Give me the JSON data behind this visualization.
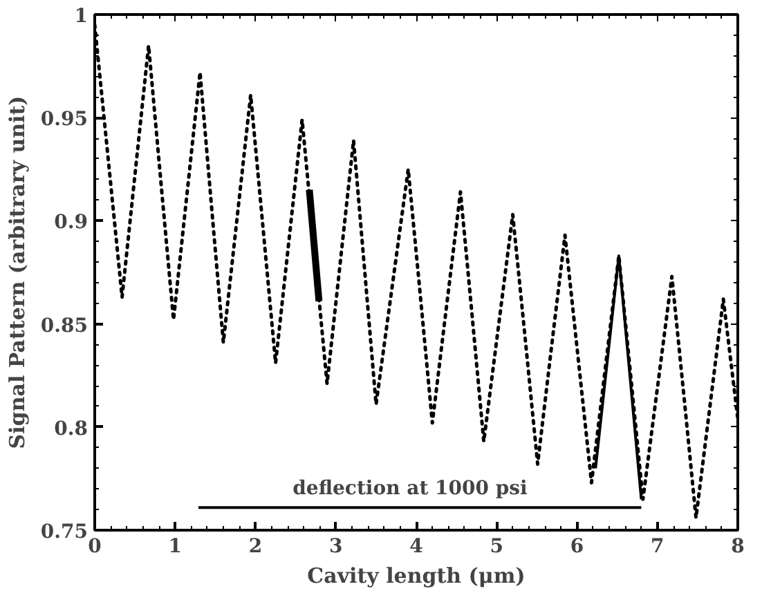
{
  "chart_data": {
    "type": "line",
    "xlabel": "Cavity length (μm)",
    "ylabel": "Signal Pattern (arbitrary unit)",
    "xlim": [
      0,
      8
    ],
    "ylim": [
      0.75,
      1
    ],
    "xticks": [
      0,
      1,
      2,
      3,
      4,
      5,
      6,
      7,
      8
    ],
    "yticks": [
      {
        "value": 0.75,
        "label": "0.75"
      },
      {
        "value": 0.8,
        "label": "0.8"
      },
      {
        "value": 0.85,
        "label": "0.85"
      },
      {
        "value": 0.9,
        "label": "0.9"
      },
      {
        "value": 0.95,
        "label": "0.95"
      },
      {
        "value": 1,
        "label": "1"
      }
    ],
    "grid": false,
    "series": [
      {
        "color": "#000000",
        "line_style": "dotted",
        "x": [
          0,
          0.17,
          0.34,
          0.505,
          0.67,
          0.825,
          0.98,
          1.145,
          1.31,
          1.455,
          1.6,
          1.77,
          1.94,
          2.095,
          2.25,
          2.415,
          2.58,
          2.735,
          2.89,
          3.055,
          3.22,
          3.36,
          3.5,
          3.7,
          3.9,
          4.05,
          4.2,
          4.375,
          4.55,
          4.695,
          4.84,
          5.02,
          5.2,
          5.355,
          5.51,
          5.68,
          5.85,
          6.015,
          6.18,
          6.35,
          6.52,
          6.67,
          6.82,
          7.0,
          7.18,
          7.33,
          7.48,
          7.65,
          7.82,
          7.91,
          8
        ],
        "values": [
          0.995,
          0.929,
          0.863,
          0.924,
          0.985,
          0.918,
          0.852,
          0.912,
          0.972,
          0.906,
          0.841,
          0.901,
          0.961,
          0.896,
          0.831,
          0.89,
          0.949,
          0.885,
          0.821,
          0.88,
          0.939,
          0.875,
          0.811,
          0.868,
          0.925,
          0.864,
          0.802,
          0.858,
          0.914,
          0.854,
          0.793,
          0.848,
          0.903,
          0.843,
          0.782,
          0.838,
          0.893,
          0.833,
          0.773,
          0.828,
          0.883,
          0.824,
          0.765,
          0.819,
          0.873,
          0.815,
          0.756,
          0.809,
          0.862,
          0.833,
          0.804
        ]
      },
      {
        "color": "#000000",
        "line_style": "solid",
        "x": [
          2.67,
          2.79
        ],
        "values": [
          0.915,
          0.861
        ]
      },
      {
        "color": "#000000",
        "line_style": "solid",
        "x": [
          6.23,
          6.52,
          6.8
        ],
        "values": [
          0.78,
          0.883,
          0.765
        ]
      },
      {
        "color": "#000000",
        "line_style": "solid",
        "x": [
          6.8,
          1.29
        ],
        "values": [
          0.761,
          0.761
        ]
      }
    ],
    "annotations": [
      "deflection at 1000 psi"
    ]
  }
}
